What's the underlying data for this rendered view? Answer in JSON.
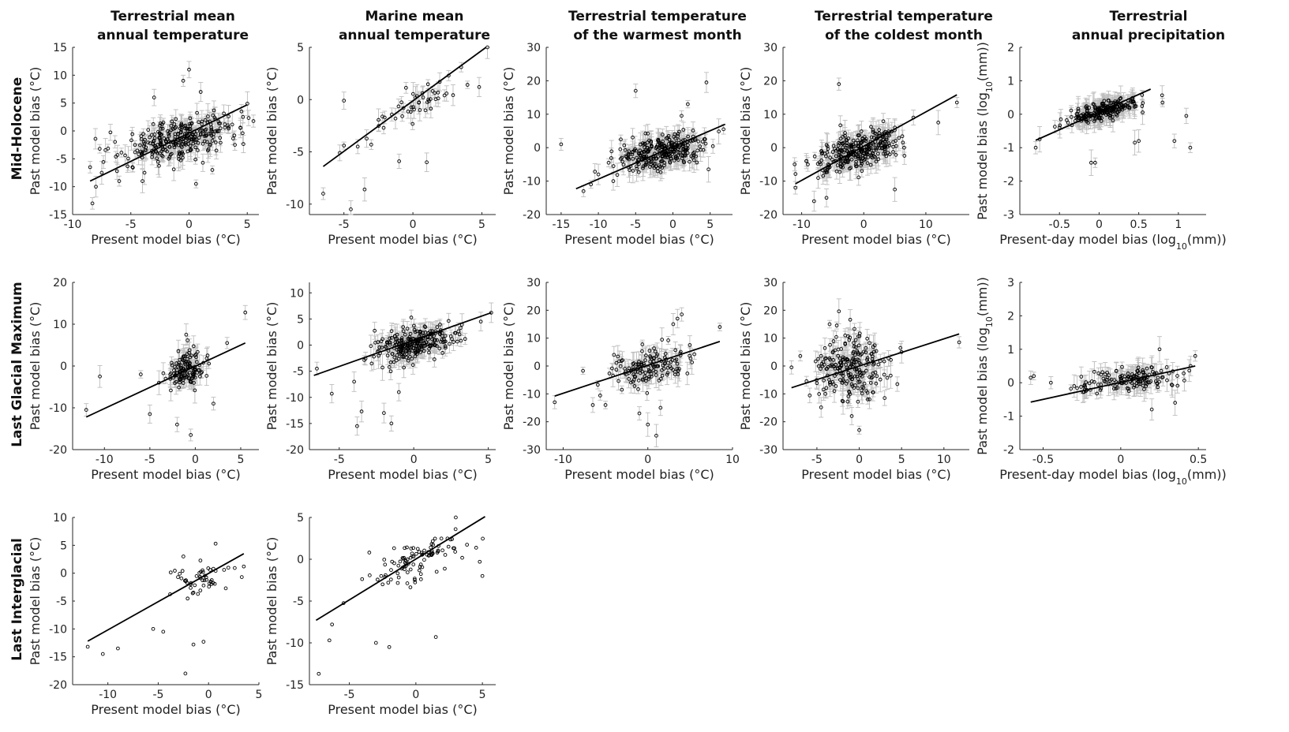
{
  "figure": {
    "column_titles": [
      [
        "Terrestrial mean",
        "annual temperature"
      ],
      [
        "Marine mean",
        "annual temperature"
      ],
      [
        "Terrestrial temperature",
        "of the warmest month"
      ],
      [
        "Terrestrial temperature",
        "of the coldest month"
      ],
      [
        "Terrestrial",
        "annual precipitation"
      ]
    ],
    "row_titles": [
      "Mid-Holocene",
      "Last Glacial Maximum",
      "Last Interglacial"
    ],
    "colors": {
      "line": "#000000",
      "marker": "#000000",
      "errorbar": "#bdbdbd"
    }
  },
  "chart_data": [
    {
      "type": "scatter",
      "id": "mh-ter-mat",
      "row": "Mid-Holocene",
      "column": "Terrestrial mean annual temperature",
      "xlabel": "Present model bias (°C)",
      "ylabel": "Past model bias (°C)",
      "xlim": [
        -10,
        6
      ],
      "ylim": [
        -15,
        15
      ],
      "xticks": [
        "-10",
        "-5",
        "0",
        "5"
      ],
      "yticks": [
        "-15",
        "-10",
        "-5",
        "0",
        "5",
        "10",
        "15"
      ],
      "fit": [
        [
          -8.5,
          -9
        ],
        [
          5,
          4.7
        ]
      ],
      "cluster": {
        "cx": -1,
        "cy": -1.5,
        "sx": 2.3,
        "sy": 3.2,
        "n": 300,
        "r": 0.45
      },
      "errorbars": true,
      "points": [
        [
          -8.3,
          -13
        ],
        [
          -8,
          -10
        ],
        [
          -8.5,
          -6.5
        ],
        [
          -7.5,
          -7.5
        ],
        [
          4.6,
          -0.4
        ],
        [
          4.5,
          3.5
        ],
        [
          0,
          11
        ],
        [
          -0.5,
          9
        ],
        [
          0.6,
          -9.5
        ],
        [
          -4,
          -9
        ],
        [
          2,
          -7
        ],
        [
          -6,
          -9
        ],
        [
          -3,
          6
        ],
        [
          1,
          7
        ]
      ]
    },
    {
      "type": "scatter",
      "id": "mh-mar-mat",
      "row": "Mid-Holocene",
      "column": "Marine mean annual temperature",
      "xlabel": "Present model bias (°C)",
      "ylabel": "Past model bias (°C)",
      "xlim": [
        -7.5,
        6
      ],
      "ylim": [
        -11,
        5
      ],
      "xticks": [
        "-5",
        "0",
        "5"
      ],
      "yticks": [
        "-10",
        "-5",
        "0",
        "5"
      ],
      "fit": [
        [
          -6.5,
          -6.4
        ],
        [
          5.3,
          5
        ]
      ],
      "cluster": {
        "cx": 0,
        "cy": -1.5,
        "sx": 1.7,
        "sy": 2.2,
        "n": 45,
        "r": 0.65
      },
      "errorbars": true,
      "points": [
        [
          -6.5,
          -9
        ],
        [
          -5,
          -0.1
        ],
        [
          -5.3,
          -5.1
        ],
        [
          -5,
          -4.4
        ],
        [
          -4,
          -4.5
        ],
        [
          -4.5,
          -10.5
        ],
        [
          -3.5,
          -8.6
        ],
        [
          1,
          -6
        ],
        [
          5.4,
          5
        ],
        [
          4.8,
          1.2
        ],
        [
          3.5,
          3.1
        ],
        [
          -1,
          -5.9
        ],
        [
          0.5,
          -1
        ]
      ]
    },
    {
      "type": "scatter",
      "id": "mh-ter-mtwm",
      "row": "Mid-Holocene",
      "column": "Terrestrial temperature of the warmest month",
      "xlabel": "Present model bias (°C)",
      "ylabel": "Past model bias (°C)",
      "xlim": [
        -17,
        8
      ],
      "ylim": [
        -20,
        30
      ],
      "xticks": [
        "-15",
        "-10",
        "-5",
        "0",
        "5"
      ],
      "yticks": [
        "-20",
        "-10",
        "0",
        "10",
        "20",
        "30"
      ],
      "fit": [
        [
          -13,
          -12.3
        ],
        [
          7,
          7
        ]
      ],
      "cluster": {
        "cx": -1.5,
        "cy": -1,
        "sx": 2.7,
        "sy": 4.2,
        "n": 300,
        "r": 0.45
      },
      "errorbars": true,
      "points": [
        [
          -15,
          1
        ],
        [
          -5,
          17
        ],
        [
          4.5,
          19.5
        ],
        [
          6.8,
          5.5
        ],
        [
          -11,
          -11
        ],
        [
          -10,
          -8
        ],
        [
          -12,
          -13
        ],
        [
          2,
          13
        ],
        [
          -8,
          -10
        ]
      ]
    },
    {
      "type": "scatter",
      "id": "mh-ter-mtcm",
      "row": "Mid-Holocene",
      "column": "Terrestrial temperature of the coldest month",
      "xlabel": "Present model bias (°C)",
      "ylabel": "Past model bias (°C)",
      "xlim": [
        -13,
        17
      ],
      "ylim": [
        -20,
        30
      ],
      "xticks": [
        "-10",
        "0",
        "10"
      ],
      "yticks": [
        "-20",
        "-10",
        "0",
        "10",
        "20",
        "30"
      ],
      "fit": [
        [
          -11,
          -10.8
        ],
        [
          15,
          15.8
        ]
      ],
      "cluster": {
        "cx": -1,
        "cy": -1,
        "sx": 3.4,
        "sy": 4.6,
        "n": 300,
        "r": 0.45
      },
      "errorbars": true,
      "points": [
        [
          -4,
          19
        ],
        [
          15,
          13.5
        ],
        [
          12,
          7.5
        ],
        [
          -11,
          -12
        ],
        [
          -8,
          -16
        ],
        [
          5,
          -12.5
        ],
        [
          -6,
          -15
        ],
        [
          8,
          9
        ],
        [
          -9,
          -5
        ]
      ]
    },
    {
      "type": "scatter",
      "id": "mh-ter-ap",
      "row": "Mid-Holocene",
      "column": "Terrestrial annual precipitation",
      "xlabel": "Present-day model bias (log10(mm))",
      "ylabel": "Past model bias (log10(mm))",
      "xlim": [
        -1,
        1.35
      ],
      "ylim": [
        -3,
        2
      ],
      "xticks": [
        "-0.5",
        "0",
        "0.5",
        "1"
      ],
      "yticks": [
        "-3",
        "-2",
        "-1",
        "0",
        "1",
        "2"
      ],
      "fit": [
        [
          -0.8,
          -0.78
        ],
        [
          0.65,
          0.75
        ]
      ],
      "cluster": {
        "cx": 0.05,
        "cy": 0.05,
        "sx": 0.2,
        "sy": 0.28,
        "n": 230,
        "r": 0.6
      },
      "errorbars": true,
      "points": [
        [
          -0.8,
          -1
        ],
        [
          -0.75,
          -0.75
        ],
        [
          1.15,
          -1
        ],
        [
          1.1,
          -0.05
        ],
        [
          0.95,
          -0.8
        ],
        [
          0.8,
          0.35
        ],
        [
          0.45,
          -0.85
        ],
        [
          0.5,
          -0.8
        ],
        [
          -0.05,
          -1.45
        ],
        [
          -0.1,
          -1.45
        ],
        [
          -0.5,
          -0.4
        ],
        [
          -0.3,
          -0.2
        ]
      ]
    },
    {
      "type": "scatter",
      "id": "lgm-ter-mat",
      "row": "Last Glacial Maximum",
      "column": "Terrestrial mean annual temperature",
      "xlabel": "Present model bias (°C)",
      "ylabel": "Past model bias (°C)",
      "xlim": [
        -13.5,
        7
      ],
      "ylim": [
        -20,
        20
      ],
      "xticks": [
        "-10",
        "-5",
        "0",
        "5"
      ],
      "yticks": [
        "-20",
        "-10",
        "0",
        "10",
        "20"
      ],
      "fit": [
        [
          -12,
          -12.2
        ],
        [
          5.5,
          5.5
        ]
      ],
      "cluster": {
        "cx": -1,
        "cy": 0,
        "sx": 1.1,
        "sy": 4.5,
        "n": 130,
        "r": 0.55
      },
      "errorbars": true,
      "points": [
        [
          -12,
          -10.5
        ],
        [
          -10.5,
          -2.5
        ],
        [
          5.5,
          12.8
        ],
        [
          -5,
          -11.5
        ],
        [
          -6,
          -2
        ],
        [
          -0.5,
          -16.5
        ],
        [
          2,
          -9
        ],
        [
          3.5,
          5.5
        ],
        [
          -4,
          -4
        ],
        [
          -1,
          7.5
        ],
        [
          -2,
          -14
        ]
      ]
    },
    {
      "type": "scatter",
      "id": "lgm-mar-mat",
      "row": "Last Glacial Maximum",
      "column": "Marine mean annual temperature",
      "xlabel": "Present model bias (°C)",
      "ylabel": "Past model bias (°C)",
      "xlim": [
        -7,
        5.5
      ],
      "ylim": [
        -20,
        12
      ],
      "xticks": [
        "-5",
        "0",
        "5"
      ],
      "yticks": [
        "-20",
        "-15",
        "-10",
        "-5",
        "0",
        "5",
        "10"
      ],
      "fit": [
        [
          -6.7,
          -5.8
        ],
        [
          5.2,
          6.2
        ]
      ],
      "cluster": {
        "cx": 0,
        "cy": -0.5,
        "sx": 1.3,
        "sy": 2.8,
        "n": 260,
        "r": 0.5
      },
      "errorbars": true,
      "points": [
        [
          -6.5,
          -4.5
        ],
        [
          -5.5,
          -9.3
        ],
        [
          -3.8,
          -15.5
        ],
        [
          -3.5,
          -12.7
        ],
        [
          -2,
          -13
        ],
        [
          -1.5,
          -15
        ],
        [
          5.2,
          6.2
        ],
        [
          4.5,
          4.5
        ],
        [
          -4,
          -7
        ],
        [
          -1,
          -9
        ]
      ]
    },
    {
      "type": "scatter",
      "id": "lgm-ter-mtwm",
      "row": "Last Glacial Maximum",
      "column": "Terrestrial temperature of the warmest month",
      "xlabel": "Present model bias (°C)",
      "ylabel": "Past model bias (°C)",
      "xlim": [
        -12,
        10
      ],
      "ylim": [
        -30,
        30
      ],
      "xticks": [
        "-10",
        "0",
        "10"
      ],
      "yticks": [
        "-30",
        "-20",
        "-10",
        "0",
        "10",
        "20",
        "30"
      ],
      "fit": [
        [
          -11,
          -10.8
        ],
        [
          8.5,
          8.8
        ]
      ],
      "cluster": {
        "cx": 0,
        "cy": -1.5,
        "sx": 2.5,
        "sy": 5.5,
        "n": 140,
        "r": 0.45
      },
      "errorbars": true,
      "points": [
        [
          -11,
          -13
        ],
        [
          -6.5,
          -14
        ],
        [
          1,
          -25
        ],
        [
          0,
          -21
        ],
        [
          4,
          18.5
        ],
        [
          3.5,
          17
        ],
        [
          8.5,
          14
        ],
        [
          -5,
          -14
        ],
        [
          1.5,
          -15
        ],
        [
          -1,
          -17
        ],
        [
          -4,
          4
        ],
        [
          3,
          15
        ]
      ]
    },
    {
      "type": "scatter",
      "id": "lgm-ter-mtcm",
      "row": "Last Glacial Maximum",
      "column": "Terrestrial temperature of the coldest month",
      "xlabel": "Present model bias (°C)",
      "ylabel": "Past model bias (°C)",
      "xlim": [
        -9,
        13
      ],
      "ylim": [
        -30,
        30
      ],
      "xticks": [
        "-5",
        "0",
        "5",
        "10"
      ],
      "yticks": [
        "-30",
        "-20",
        "-10",
        "0",
        "10",
        "20",
        "30"
      ],
      "fit": [
        [
          -8,
          -7.8
        ],
        [
          11.8,
          11.5
        ]
      ],
      "cluster": {
        "cx": -1,
        "cy": 0,
        "sx": 2,
        "sy": 8,
        "n": 220,
        "r": 0.25
      },
      "errorbars": true,
      "points": [
        [
          -8,
          -0.5
        ],
        [
          11.8,
          8.5
        ],
        [
          0,
          -23
        ],
        [
          -3.5,
          15
        ],
        [
          -4,
          -10
        ],
        [
          5,
          5
        ],
        [
          4.5,
          -6.5
        ],
        [
          3,
          -11.5
        ],
        [
          -2,
          -12.5
        ],
        [
          1,
          -12
        ]
      ]
    },
    {
      "type": "scatter",
      "id": "lgm-ter-ap",
      "row": "Last Glacial Maximum",
      "column": "Terrestrial annual precipitation",
      "xlabel": "Present-day model bias (log10(mm))",
      "ylabel": "Past model bias (log10(mm))",
      "xlim": [
        -0.65,
        0.55
      ],
      "ylim": [
        -2,
        3
      ],
      "xticks": [
        "-0.5",
        "0",
        "0.5"
      ],
      "yticks": [
        "-2",
        "-1",
        "0",
        "1",
        "2",
        "3"
      ],
      "fit": [
        [
          -0.58,
          -0.58
        ],
        [
          0.48,
          0.5
        ]
      ],
      "cluster": {
        "cx": 0.05,
        "cy": 0.1,
        "sx": 0.16,
        "sy": 0.25,
        "n": 150,
        "r": 0.4
      },
      "errorbars": true,
      "points": [
        [
          -0.58,
          0.15
        ],
        [
          -0.56,
          0.2
        ],
        [
          -0.45,
          0
        ],
        [
          0.48,
          0.8
        ],
        [
          0.45,
          0.5
        ],
        [
          0.35,
          -0.6
        ],
        [
          0.2,
          -0.8
        ],
        [
          -0.3,
          -0.1
        ],
        [
          0.25,
          1
        ],
        [
          -0.1,
          0.25
        ]
      ]
    },
    {
      "type": "scatter",
      "id": "lig-ter-mat",
      "row": "Last Interglacial",
      "column": "Terrestrial mean annual temperature",
      "xlabel": "Present model bias (°C)",
      "ylabel": "Past model bias (°C)",
      "xlim": [
        -13.5,
        5
      ],
      "ylim": [
        -20,
        10
      ],
      "xticks": [
        "-10",
        "-5",
        "0",
        "5"
      ],
      "yticks": [
        "-20",
        "-15",
        "-10",
        "-5",
        "0",
        "5",
        "10"
      ],
      "fit": [
        [
          -12,
          -12.2
        ],
        [
          3.5,
          3.5
        ]
      ],
      "cluster": {
        "cx": -1,
        "cy": -2,
        "sx": 1.5,
        "sy": 3,
        "n": 50,
        "r": 0.55
      },
      "errorbars": false,
      "points": [
        [
          -12,
          -13.2
        ],
        [
          -10.5,
          -14.5
        ],
        [
          -9,
          -13.5
        ],
        [
          -5.5,
          -10
        ],
        [
          -2.3,
          -18
        ],
        [
          -1.5,
          -12.8
        ],
        [
          -0.5,
          -12.3
        ],
        [
          3.5,
          1.2
        ],
        [
          3.3,
          -0.7
        ],
        [
          0.7,
          5.3
        ],
        [
          -2.5,
          3
        ],
        [
          -4.5,
          -10.5
        ]
      ]
    },
    {
      "type": "scatter",
      "id": "lig-mar-mat",
      "row": "Last Interglacial",
      "column": "Marine mean annual temperature",
      "xlabel": "Present model bias (°C)",
      "ylabel": "Past model bias (°C)",
      "xlim": [
        -8,
        6
      ],
      "ylim": [
        -15,
        5
      ],
      "xticks": [
        "-5",
        "0",
        "5"
      ],
      "yticks": [
        "-15",
        "-10",
        "-5",
        "0",
        "5"
      ],
      "fit": [
        [
          -7.5,
          -7.3
        ],
        [
          5.2,
          5.1
        ]
      ],
      "cluster": {
        "cx": 0,
        "cy": -0.5,
        "sx": 1.7,
        "sy": 2.3,
        "n": 100,
        "r": 0.55
      },
      "errorbars": false,
      "points": [
        [
          -7.3,
          -13.7
        ],
        [
          -6.5,
          -9.7
        ],
        [
          -6.3,
          -7.8
        ],
        [
          -3,
          -10
        ],
        [
          -2,
          -10.5
        ],
        [
          1.5,
          -9.3
        ],
        [
          5,
          -2
        ],
        [
          4.8,
          -0.3
        ],
        [
          3,
          5
        ],
        [
          -3.5,
          0.8
        ],
        [
          -2.5,
          -3
        ]
      ]
    }
  ]
}
